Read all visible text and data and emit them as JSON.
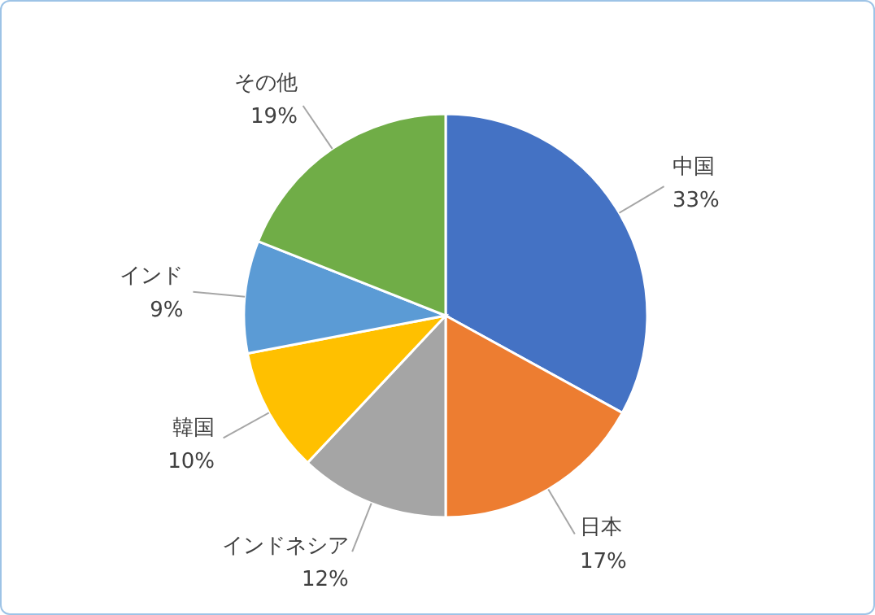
{
  "chart_data": {
    "type": "pie",
    "categories": [
      "中国",
      "日本",
      "インドネシア",
      "韓国",
      "インド",
      "その他"
    ],
    "values": [
      33,
      17,
      12,
      10,
      9,
      19
    ],
    "value_labels": [
      "33%",
      "17%",
      "12%",
      "10%",
      "9%",
      "19%"
    ],
    "colors": [
      "#4472c4",
      "#ed7d31",
      "#a5a5a5",
      "#ffc000",
      "#5b9bd5",
      "#70ad47"
    ],
    "legend": false
  }
}
